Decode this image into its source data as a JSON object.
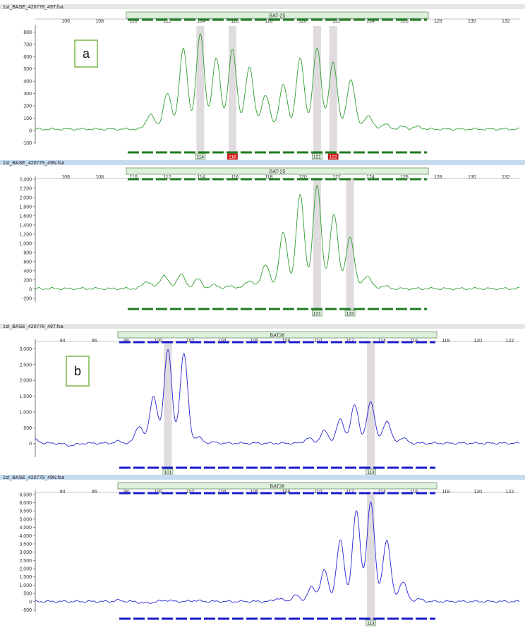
{
  "colors": {
    "green_trace": "#2e9e2e",
    "blue_trace": "#2323d6",
    "marker_fill": "#dcd7dc",
    "bin_bar_fill": "#dff0dd",
    "bin_bar_stroke": "#6a8f6a",
    "red_label": "#dd1c1c",
    "title_bar_gray": "#e6e6e6",
    "title_bar_blue": "#c6dbef",
    "panel_label_border": "#7ab648"
  },
  "chart_data": [
    {
      "type": "line",
      "file_title": "1st_BASE_420778_49T.fsa",
      "marker_name": "BAT-25",
      "panel_label": "a",
      "x_ticks": [
        106,
        108,
        110,
        112,
        114,
        116,
        118,
        120,
        122,
        124,
        126,
        128,
        130,
        132
      ],
      "y_ticks": [
        "800",
        "700",
        "600",
        "500",
        "400",
        "300",
        "200",
        "100",
        "0",
        "-100"
      ],
      "y_tick_values": [
        800,
        700,
        600,
        500,
        400,
        300,
        200,
        100,
        0,
        -100
      ],
      "xlim": [
        104.2,
        132.8
      ],
      "ylim": [
        -110,
        860
      ],
      "baseline": 10,
      "peaks": [
        [
          111.0,
          130
        ],
        [
          112.0,
          300
        ],
        [
          112.95,
          660
        ],
        [
          113.95,
          780
        ],
        [
          114.9,
          590
        ],
        [
          115.85,
          660
        ],
        [
          116.85,
          520
        ],
        [
          117.8,
          290
        ],
        [
          118.85,
          370
        ],
        [
          119.85,
          580
        ],
        [
          120.85,
          670
        ],
        [
          121.8,
          555
        ],
        [
          122.85,
          415
        ],
        [
          123.85,
          120
        ],
        [
          124.85,
          50
        ],
        [
          125.9,
          30
        ],
        [
          126.8,
          30
        ]
      ],
      "highlight_bands": [
        113.95,
        115.85,
        120.85,
        121.8
      ],
      "bin_markers": [
        {
          "x": 113.95,
          "label": "114",
          "style": "green"
        },
        {
          "x": 115.85,
          "label": "116",
          "style": "red"
        },
        {
          "x": 120.85,
          "label": "121",
          "style": "green"
        },
        {
          "x": 121.8,
          "label": "122",
          "style": "red"
        }
      ],
      "bin_range": [
        109.7,
        127.3
      ],
      "trace_color": "#2e9e2e",
      "bin_bar_color": "#1f7a1f",
      "title_bar_color": "#e6e6e6"
    },
    {
      "type": "line",
      "file_title": "1st_BASE_420779_49N.fsa",
      "marker_name": "BAT-25",
      "panel_label": "",
      "x_ticks": [
        106,
        108,
        110,
        112,
        114,
        116,
        118,
        120,
        122,
        124,
        126,
        128,
        130,
        132
      ],
      "y_ticks": [
        "2,400",
        "2,200",
        "2,000",
        "1,800",
        "1,600",
        "1,400",
        "1,200",
        "1,000",
        "800",
        "600",
        "400",
        "200",
        "0",
        "-200"
      ],
      "y_tick_values": [
        2400,
        2200,
        2000,
        1800,
        1600,
        1400,
        1200,
        1000,
        800,
        600,
        400,
        200,
        0,
        -200
      ],
      "xlim": [
        104.2,
        132.8
      ],
      "ylim": [
        -280,
        2460
      ],
      "baseline": 10,
      "peaks": [
        [
          110.8,
          170
        ],
        [
          111.8,
          300
        ],
        [
          112.8,
          320
        ],
        [
          113.8,
          220
        ],
        [
          114.8,
          90
        ],
        [
          115.8,
          70
        ],
        [
          116.85,
          190
        ],
        [
          117.8,
          540
        ],
        [
          118.85,
          1230
        ],
        [
          119.85,
          2040
        ],
        [
          120.85,
          2260
        ],
        [
          121.85,
          1640
        ],
        [
          122.8,
          1140
        ],
        [
          123.8,
          290
        ],
        [
          124.8,
          70
        ]
      ],
      "highlight_bands": [
        120.85,
        122.8
      ],
      "bin_markers": [
        {
          "x": 120.85,
          "label": "121",
          "style": "green"
        },
        {
          "x": 122.8,
          "label": "123",
          "style": "green"
        }
      ],
      "bin_range": [
        109.7,
        127.3
      ],
      "trace_color": "#2e9e2e",
      "bin_bar_color": "#1f7a1f",
      "title_bar_color": "#c6dbef"
    },
    {
      "type": "line",
      "file_title": "1st_BASE_420778_49T.fsa",
      "marker_name": "BAT26",
      "panel_label": "b",
      "x_ticks": [
        94,
        96,
        98,
        100,
        102,
        104,
        106,
        108,
        110,
        112,
        114,
        116,
        118,
        120,
        122
      ],
      "y_ticks": [
        "3,000",
        "2,500",
        "2,000",
        "1,500",
        "1,000",
        "500",
        "0"
      ],
      "y_tick_values": [
        3000,
        2500,
        2000,
        1500,
        1000,
        500,
        0
      ],
      "xlim": [
        92.3,
        122.6
      ],
      "ylim": [
        -430,
        3300
      ],
      "baseline": 10,
      "peaks": [
        [
          92.3,
          120
        ],
        [
          94.5,
          -60
        ],
        [
          97.5,
          70
        ],
        [
          98.8,
          560
        ],
        [
          99.7,
          1500
        ],
        [
          100.6,
          3000
        ],
        [
          101.6,
          2850
        ],
        [
          102.5,
          200
        ],
        [
          103.5,
          40
        ],
        [
          109.4,
          170
        ],
        [
          110.4,
          400
        ],
        [
          111.4,
          760
        ],
        [
          112.3,
          1230
        ],
        [
          113.3,
          1330
        ],
        [
          114.3,
          720
        ],
        [
          115.3,
          180
        ]
      ],
      "highlight_bands": [
        100.6,
        113.3
      ],
      "bin_markers": [
        {
          "x": 100.6,
          "label": "101",
          "style": "green"
        },
        {
          "x": 113.3,
          "label": "113",
          "style": "green"
        }
      ],
      "bin_range": [
        97.6,
        117.3
      ],
      "trace_color": "#2323d6",
      "bin_bar_color": "#1a1acc",
      "title_bar_color": "#e6e6e6"
    },
    {
      "type": "line",
      "file_title": "1st_BASE_420779_49N.fsa",
      "marker_name": "BAT26",
      "panel_label": "",
      "x_ticks": [
        94,
        96,
        98,
        100,
        102,
        104,
        106,
        108,
        110,
        112,
        114,
        116,
        118,
        120,
        122
      ],
      "y_ticks": [
        "6,500",
        "6,000",
        "5,500",
        "5,000",
        "4,500",
        "4,000",
        "3,500",
        "3,000",
        "2,500",
        "2,000",
        "1,500",
        "1,000",
        "500",
        "0",
        "-500"
      ],
      "y_tick_values": [
        6500,
        6000,
        5500,
        5000,
        4500,
        4000,
        3500,
        3000,
        2500,
        2000,
        1500,
        1000,
        500,
        0,
        -500
      ],
      "xlim": [
        92.3,
        122.6
      ],
      "ylim": [
        -650,
        6750
      ],
      "baseline": 10,
      "peaks": [
        [
          97.5,
          80
        ],
        [
          99.2,
          -90
        ],
        [
          100.5,
          90
        ],
        [
          102.3,
          70
        ],
        [
          107.5,
          200
        ],
        [
          108.6,
          380
        ],
        [
          109.6,
          870
        ],
        [
          110.4,
          1900
        ],
        [
          111.4,
          3700
        ],
        [
          112.4,
          5550
        ],
        [
          113.3,
          6050
        ],
        [
          114.3,
          3750
        ],
        [
          115.3,
          1200
        ],
        [
          116.3,
          150
        ]
      ],
      "highlight_bands": [
        113.3
      ],
      "bin_markers": [
        {
          "x": 113.3,
          "label": "113",
          "style": "green"
        }
      ],
      "bin_range": [
        97.6,
        117.3
      ],
      "trace_color": "#2323d6",
      "bin_bar_color": "#1a1acc",
      "title_bar_color": "#c6dbef"
    }
  ]
}
